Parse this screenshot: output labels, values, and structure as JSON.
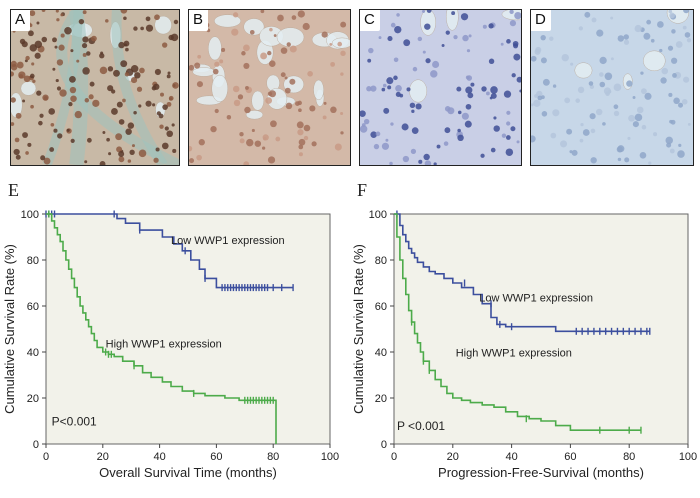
{
  "micrographs": [
    {
      "label": "A",
      "stain": "strong",
      "bg": "#c8b9a6",
      "cell": "#5b3a2a",
      "cellAlt": "#8c5a42"
    },
    {
      "label": "B",
      "stain": "moderate",
      "bg": "#d3b9a8",
      "cell": "#a2705c",
      "cellAlt": "#c89a86"
    },
    {
      "label": "C",
      "stain": "negative",
      "bg": "#c9cfe6",
      "cell": "#3f4f95",
      "cellAlt": "#8e98c8"
    },
    {
      "label": "D",
      "stain": "negative",
      "bg": "#c7d7e8",
      "cell": "#8fa7c9",
      "cellAlt": "#b4c6dc"
    }
  ],
  "chart_data": [
    {
      "type": "line",
      "panel_label": "E",
      "xlabel": "Overall  Survival  Time (months)",
      "ylabel": "Cumulative Survival Rate (%)",
      "xlim": [
        0,
        100
      ],
      "ylim": [
        0,
        100
      ],
      "xticks": [
        "0",
        "20",
        "40",
        "60",
        "80",
        "100"
      ],
      "yticks": [
        "0",
        "20",
        "40",
        "60",
        "80",
        "100"
      ],
      "pvalue": "P<0.001",
      "series": [
        {
          "name": "Low WWP1 expression",
          "color": "#3c4f9e",
          "x": [
            0,
            25,
            25,
            28,
            28,
            33,
            33,
            41,
            41,
            45,
            45,
            48,
            48,
            51,
            51,
            54,
            54,
            56,
            56,
            60,
            60,
            87
          ],
          "y": [
            100,
            100,
            98,
            98,
            96,
            96,
            93,
            93,
            90,
            90,
            87,
            87,
            84,
            84,
            80,
            80,
            76,
            76,
            72,
            72,
            68,
            68
          ],
          "censor_x": [
            0,
            1,
            2,
            3,
            24,
            33,
            49,
            56,
            62,
            63,
            64,
            65,
            66,
            67,
            68,
            69,
            70,
            71,
            72,
            73,
            74,
            75,
            76,
            77,
            78,
            80,
            83,
            87
          ],
          "censor_y": [
            100,
            100,
            100,
            100,
            100,
            93,
            84,
            72,
            68,
            68,
            68,
            68,
            68,
            68,
            68,
            68,
            68,
            68,
            68,
            68,
            68,
            68,
            68,
            68,
            68,
            68,
            68,
            68
          ]
        },
        {
          "name": "High WWP1 expression",
          "color": "#4dab4a",
          "x": [
            0,
            2,
            2,
            3,
            3,
            4,
            4,
            5,
            5,
            6,
            6,
            7,
            7,
            8,
            8,
            9,
            9,
            10,
            10,
            11,
            11,
            12,
            12,
            13,
            13,
            14,
            14,
            15,
            15,
            16,
            16,
            17,
            17,
            18,
            18,
            20,
            20,
            22,
            22,
            24,
            24,
            27,
            27,
            31,
            31,
            34,
            34,
            37,
            37,
            41,
            41,
            44,
            44,
            48,
            48,
            52,
            52,
            56,
            56,
            63,
            63,
            68,
            68,
            80,
            80,
            81,
            81
          ],
          "y": [
            100,
            100,
            97,
            97,
            94,
            94,
            91,
            91,
            88,
            88,
            84,
            84,
            80,
            80,
            76,
            76,
            72,
            72,
            68,
            68,
            64,
            64,
            60,
            60,
            57,
            57,
            54,
            54,
            51,
            51,
            48,
            48,
            45,
            45,
            42,
            42,
            40,
            40,
            39,
            39,
            38,
            38,
            36,
            36,
            34,
            34,
            31,
            31,
            29,
            29,
            27,
            27,
            25,
            25,
            23,
            23,
            22,
            22,
            21,
            21,
            20,
            20,
            19,
            19,
            19,
            19,
            0
          ],
          "censor_x": [
            1,
            21,
            22,
            23,
            31,
            52,
            70,
            71,
            72,
            73,
            74,
            75,
            76,
            77,
            78,
            79,
            80
          ],
          "censor_y": [
            100,
            40,
            39,
            39,
            34,
            22,
            19,
            19,
            19,
            19,
            19,
            19,
            19,
            19,
            19,
            19,
            19
          ]
        }
      ]
    },
    {
      "type": "line",
      "panel_label": "F",
      "xlabel": "Progression-Free-Survival (months)",
      "ylabel": "Cumulative Survival Rate (%)",
      "xlim": [
        0,
        100
      ],
      "ylim": [
        0,
        100
      ],
      "xticks": [
        "0",
        "20",
        "40",
        "60",
        "80",
        "100"
      ],
      "yticks": [
        "0",
        "20",
        "40",
        "60",
        "80",
        "100"
      ],
      "pvalue": "P <0.001",
      "series": [
        {
          "name": "Low WWP1 expression",
          "color": "#3c4f9e",
          "x": [
            0,
            2,
            2,
            3,
            3,
            4,
            4,
            5,
            5,
            6,
            6,
            7,
            7,
            8,
            8,
            10,
            10,
            12,
            12,
            14,
            14,
            17,
            17,
            20,
            20,
            23,
            23,
            27,
            27,
            30,
            30,
            33,
            33,
            35,
            35,
            38,
            38,
            55,
            55,
            87
          ],
          "y": [
            100,
            100,
            95,
            95,
            91,
            91,
            88,
            88,
            85,
            85,
            83,
            83,
            81,
            81,
            79,
            79,
            77,
            77,
            75,
            75,
            74,
            74,
            72,
            72,
            70,
            70,
            68,
            68,
            65,
            65,
            61,
            61,
            55,
            55,
            52,
            52,
            51,
            51,
            49,
            49
          ],
          "censor_x": [
            1,
            24,
            33,
            36,
            40,
            62,
            64,
            66,
            68,
            70,
            72,
            74,
            76,
            78,
            80,
            82,
            84,
            86,
            87
          ],
          "censor_y": [
            100,
            70,
            61,
            52,
            51,
            49,
            49,
            49,
            49,
            49,
            49,
            49,
            49,
            49,
            49,
            49,
            49,
            49,
            49
          ]
        },
        {
          "name": "High WWP1 expression",
          "color": "#4dab4a",
          "x": [
            0,
            1,
            1,
            2,
            2,
            3,
            3,
            4,
            4,
            5,
            5,
            6,
            6,
            7,
            7,
            8,
            8,
            9,
            9,
            10,
            10,
            12,
            12,
            14,
            14,
            16,
            16,
            18,
            18,
            20,
            20,
            23,
            23,
            26,
            26,
            30,
            30,
            34,
            34,
            38,
            38,
            42,
            42,
            46,
            46,
            50,
            50,
            55,
            55,
            60,
            60,
            84
          ],
          "y": [
            100,
            100,
            90,
            90,
            80,
            80,
            72,
            72,
            65,
            65,
            58,
            58,
            53,
            53,
            48,
            48,
            44,
            44,
            40,
            40,
            36,
            36,
            32,
            32,
            28,
            28,
            25,
            25,
            22,
            22,
            20,
            20,
            19,
            19,
            18,
            18,
            17,
            17,
            16,
            16,
            14,
            14,
            12,
            12,
            11,
            11,
            10,
            10,
            8,
            8,
            6,
            6
          ],
          "censor_x": [
            6,
            10,
            12,
            45,
            70,
            80,
            84
          ],
          "censor_y": [
            53,
            36,
            32,
            11,
            6,
            6,
            6
          ]
        }
      ]
    }
  ]
}
